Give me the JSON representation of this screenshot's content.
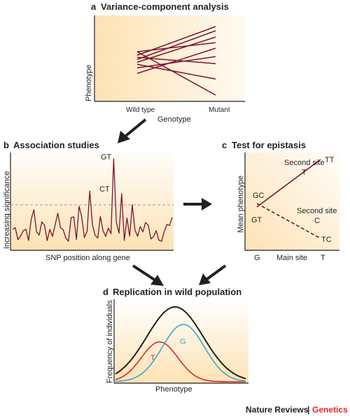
{
  "colors": {
    "panel_fill": "#fde7c0",
    "maroon": "#7a1430",
    "red": "#e1252b",
    "blue": "#3aa8c9",
    "black": "#231f20",
    "arrow": "#231f20",
    "brand_red": "#e1252b"
  },
  "panel_a": {
    "letter": "a",
    "title": "Variance-component analysis",
    "ylabel": "Phenotype",
    "xlabel": "Genotype",
    "ticks": [
      "Wild type",
      "Mutant"
    ]
  },
  "panel_b": {
    "letter": "b",
    "title": "Association studies",
    "ylabel": "Increasing significance",
    "xlabel": "SNP position along gene",
    "peak1": "GT",
    "peak2": "CT"
  },
  "panel_c": {
    "letter": "c",
    "title": "Test for epistasis",
    "ylabel": "Mean phenotype",
    "xlabel": "Main site",
    "tick_left": "G",
    "tick_right": "T",
    "second_site_t_line1": "Second site",
    "second_site_t_line2": "T",
    "second_site_c_line1": "Second site",
    "second_site_c_line2": "C",
    "label_tt": "TT",
    "label_gc": "GC",
    "label_gt": "GT",
    "label_tc": "TC"
  },
  "panel_d": {
    "letter": "d",
    "title": "Replication in wild population",
    "ylabel": "Frequency of individuals",
    "xlabel": "Phenotype",
    "curve_t": "T",
    "curve_g": "G"
  },
  "credit": {
    "journal": "Nature Reviews",
    "separator": "|",
    "section": "Genetics"
  }
}
